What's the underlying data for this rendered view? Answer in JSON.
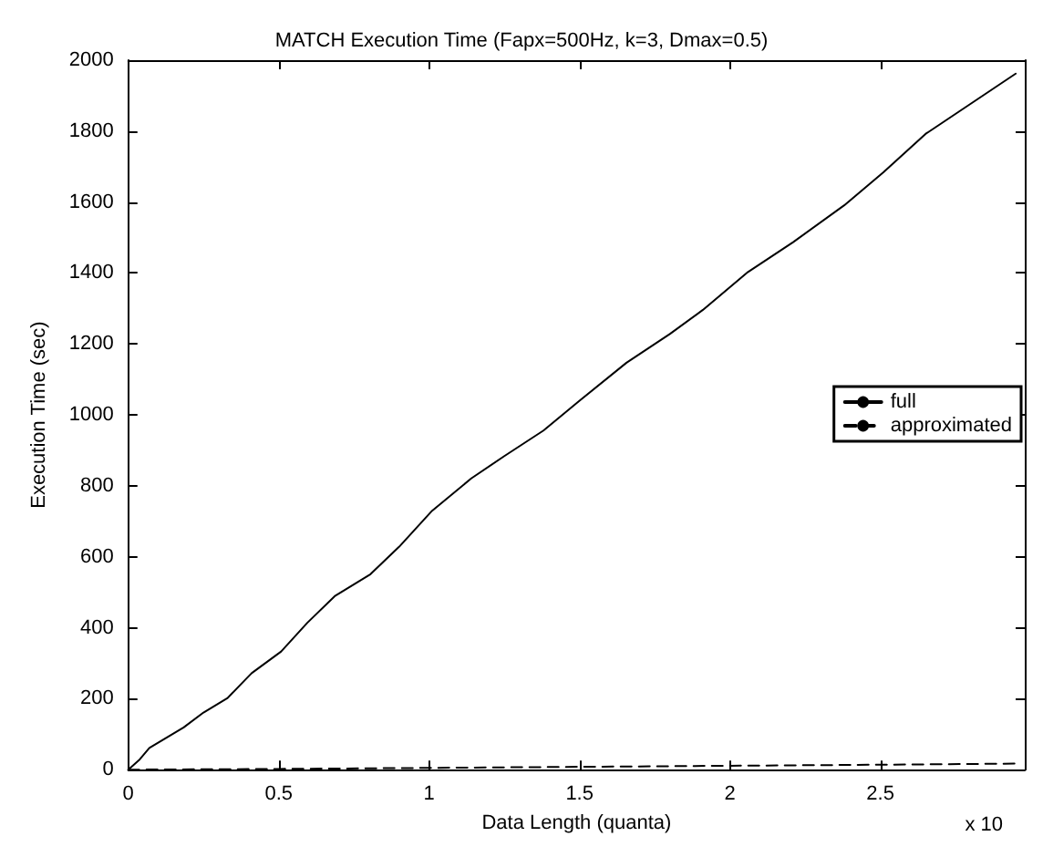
{
  "chart_data": {
    "type": "line",
    "title": "MATCH Execution Time (Fapx=500Hz, k=3, Dmax=0.5)",
    "xlabel": "Data Length (quanta)",
    "ylabel": "Execution Time (sec)",
    "annotations": [
      "x 10"
    ],
    "xlim": [
      0,
      2.98
    ],
    "xticks": [
      0,
      0.5,
      1,
      1.5,
      2,
      2.5
    ],
    "ylim": [
      0,
      2000
    ],
    "yticks": [
      0,
      200,
      400,
      600,
      800,
      1000,
      1200,
      1400,
      1600,
      1800,
      2000
    ],
    "grid": false,
    "legend": "right",
    "marker": "none",
    "series": [
      {
        "name": "full",
        "color": "#000000",
        "line_style": "solid",
        "x": [
          0,
          0.038,
          0.07,
          0.184,
          0.25,
          0.33,
          0.41,
          0.508,
          0.595,
          0.686,
          0.805,
          0.9,
          1.01,
          1.14,
          1.25,
          1.38,
          1.5,
          1.656,
          1.8,
          1.91,
          2.06,
          2.21,
          2.38,
          2.51,
          2.65,
          2.95
        ],
        "values": [
          0,
          29,
          61,
          119,
          161,
          202,
          272,
          333,
          414,
          489,
          551,
          628,
          730,
          821,
          884,
          956,
          1040,
          1147,
          1228,
          1296,
          1403,
          1487,
          1591,
          1684,
          1792,
          1962
        ]
      },
      {
        "name": "approximated",
        "color": "#000000",
        "line_style": "dashed",
        "x": [
          0,
          0.5,
          1,
          1.5,
          2,
          2.5,
          2.95
        ],
        "values": [
          0,
          2,
          5,
          8,
          11,
          14,
          17
        ]
      }
    ]
  }
}
